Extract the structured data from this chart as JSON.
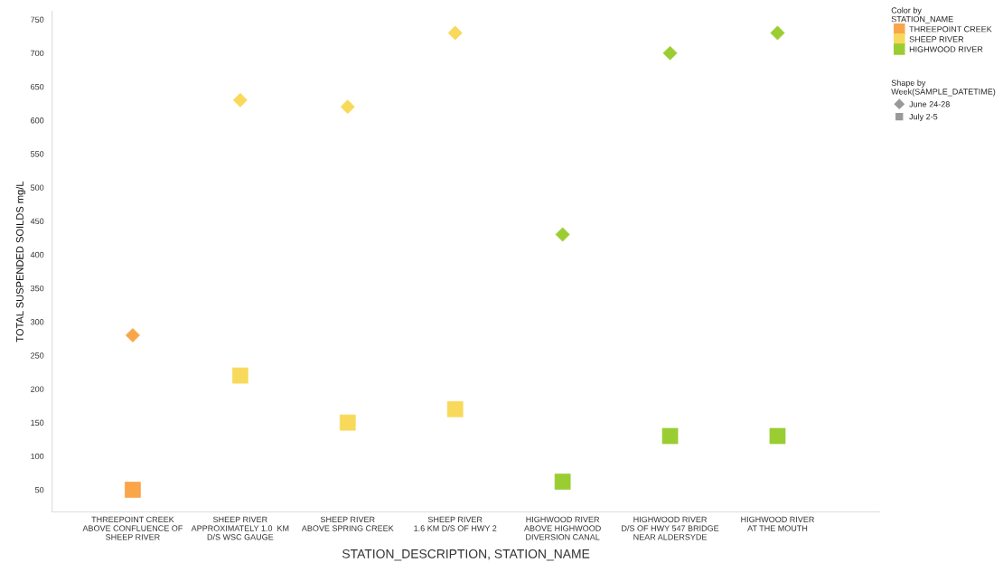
{
  "chart_data": {
    "type": "scatter",
    "categories": [
      "THREEPOINT CREEK\nABOVE CONFLUENCE OF\nSHEEP RIVER",
      "SHEEP RIVER\nAPPROXIMATELY 1.0  KM\nD/S WSC GAUGE",
      "SHEEP RIVER\nABOVE SPRING CREEK",
      "SHEEP RIVER\n1.6 KM D/S OF HWY 2",
      "HIGHWOOD RIVER\nABOVE HIGHWOOD\nDIVERSION CANAL",
      "HIGHWOOD RIVER\nD/S OF HWY 547 BRIDGE\nNEAR ALDERSYDE",
      "HIGHWOOD RIVER\nAT THE MOUTH"
    ],
    "xlabel": "STATION_DESCRIPTION, STATION_NAME",
    "ylabel": "TOTAL SUSPENDED SOILDS mg/L",
    "legend_title": [
      "Color by\nSTATION_NAME",
      "Shape by\nWeek(SAMPLE_DATETIME)"
    ],
    "ylim": [
      17,
      762
    ],
    "yticks": [
      50,
      100,
      150,
      200,
      250,
      300,
      350,
      400,
      450,
      500,
      550,
      600,
      650,
      700,
      750
    ],
    "grid": false,
    "legend": "right",
    "series": [
      {
        "name": "THREEPOINT CREEK",
        "color": "#f9a54a",
        "values": [
          null,
          null,
          null,
          null,
          null,
          null,
          null
        ]
      },
      {
        "name": "SHEEP RIVER",
        "color": "#f8d95c",
        "values": [
          null,
          null,
          null,
          null,
          null,
          null,
          null
        ]
      },
      {
        "name": "HIGHWOOD RIVER",
        "color": "#9acd32",
        "values": [
          null,
          null,
          null,
          null,
          null,
          null,
          null
        ]
      },
      {
        "name": "June 24-28",
        "color": "#999999",
        "marker": "diamond",
        "colors": [
          "#f9a54a",
          "#f8d95c",
          "#f8d95c",
          "#f8d95c",
          "#9acd32",
          "#9acd32",
          "#9acd32"
        ],
        "values": [
          280,
          630,
          620,
          730,
          430,
          700,
          730
        ]
      },
      {
        "name": "July 2-5",
        "color": "#999999",
        "marker": "square",
        "colors": [
          "#f9a54a",
          "#f8d95c",
          "#f8d95c",
          "#f8d95c",
          "#9acd32",
          "#9acd32",
          "#9acd32"
        ],
        "values": [
          50,
          220,
          150,
          170,
          62,
          130,
          130
        ]
      }
    ]
  }
}
